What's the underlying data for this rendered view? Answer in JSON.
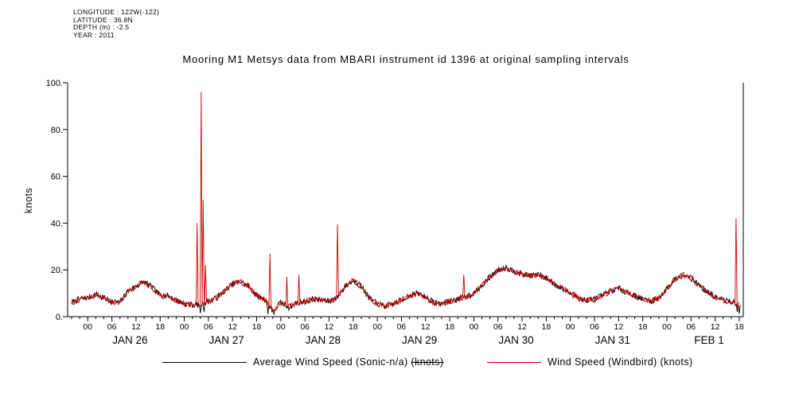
{
  "header_block": {
    "lines": [
      "LONGITUDE : 122W(-122)",
      "LATITUDE : 36.8N",
      "DEPTH (m) : -2.5",
      "YEAR : 2011"
    ]
  },
  "chart_data": {
    "type": "line",
    "title": "Mooring M1 Metsys data from MBARI instrument id 1396 at original sampling intervals",
    "ylabel": "knots",
    "ylim": [
      0,
      100
    ],
    "y_ticks": {
      "values": [
        0,
        20,
        40,
        60,
        80,
        100
      ],
      "labels": [
        "0.",
        "20.",
        "40.",
        "60.",
        "80.",
        "100."
      ]
    },
    "x_range_hours": [
      -5,
      163
    ],
    "hour_tick_interval": 6,
    "minor_tick_interval": 2,
    "hour_tick_labels": [
      "00",
      "06",
      "12",
      "18"
    ],
    "days": [
      "JAN 26",
      "JAN 27",
      "JAN 28",
      "JAN 29",
      "JAN 30",
      "JAN 31",
      "FEB 1"
    ],
    "grid": false,
    "legend_position": "bottom",
    "legend": {
      "sonic_label": "Average Wind Speed (Sonic-n/a) ",
      "sonic_label_struck": "(knots)",
      "windbird_label": "Wind Speed (Windbird) (knots)"
    },
    "baseline_hours_values": [
      [
        -4,
        6
      ],
      [
        -2,
        7.5
      ],
      [
        0,
        8
      ],
      [
        2,
        9.5
      ],
      [
        4,
        8
      ],
      [
        6,
        6.5
      ],
      [
        8,
        6
      ],
      [
        10,
        11
      ],
      [
        12,
        13
      ],
      [
        14,
        15
      ],
      [
        16,
        12.5
      ],
      [
        18,
        9
      ],
      [
        20,
        9
      ],
      [
        22,
        7
      ],
      [
        24,
        5.5
      ],
      [
        26,
        5
      ],
      [
        28,
        5
      ],
      [
        30,
        6.5
      ],
      [
        32,
        8
      ],
      [
        34,
        11
      ],
      [
        36,
        14
      ],
      [
        38,
        15
      ],
      [
        40,
        13
      ],
      [
        42,
        9
      ],
      [
        44,
        7.5
      ],
      [
        46,
        2.5
      ],
      [
        48,
        6
      ],
      [
        50,
        4
      ],
      [
        52,
        6
      ],
      [
        54,
        6.5
      ],
      [
        56,
        7.5
      ],
      [
        58,
        7
      ],
      [
        60,
        6.5
      ],
      [
        62,
        8
      ],
      [
        64,
        13
      ],
      [
        66,
        15.5
      ],
      [
        68,
        13
      ],
      [
        70,
        8
      ],
      [
        72,
        5.5
      ],
      [
        74,
        4.5
      ],
      [
        76,
        5.5
      ],
      [
        78,
        7
      ],
      [
        80,
        9
      ],
      [
        82,
        10
      ],
      [
        84,
        8.5
      ],
      [
        86,
        6
      ],
      [
        88,
        5.5
      ],
      [
        90,
        6.5
      ],
      [
        92,
        7.5
      ],
      [
        94,
        8.5
      ],
      [
        96,
        10
      ],
      [
        98,
        13
      ],
      [
        100,
        17
      ],
      [
        102,
        20
      ],
      [
        104,
        21
      ],
      [
        106,
        19.5
      ],
      [
        108,
        18
      ],
      [
        110,
        17.5
      ],
      [
        112,
        18
      ],
      [
        114,
        16.5
      ],
      [
        116,
        14
      ],
      [
        118,
        12
      ],
      [
        120,
        10
      ],
      [
        122,
        8
      ],
      [
        124,
        7
      ],
      [
        126,
        7.5
      ],
      [
        128,
        9
      ],
      [
        130,
        11
      ],
      [
        132,
        12
      ],
      [
        134,
        10.5
      ],
      [
        136,
        9
      ],
      [
        138,
        7.5
      ],
      [
        140,
        6.5
      ],
      [
        142,
        8
      ],
      [
        144,
        12
      ],
      [
        146,
        16
      ],
      [
        148,
        18
      ],
      [
        150,
        16.5
      ],
      [
        152,
        13.5
      ],
      [
        154,
        10.5
      ],
      [
        156,
        8.5
      ],
      [
        158,
        7
      ],
      [
        160,
        6.5
      ],
      [
        162,
        5
      ]
    ],
    "series": [
      {
        "name": "Average Wind Speed (Sonic-n/a) (knots)",
        "color": "#000000",
        "spikes": [
          [
            28,
            1.5
          ],
          [
            28.9,
            2
          ],
          [
            44.8,
            1
          ],
          [
            46.3,
            0.8
          ],
          [
            161.5,
            2
          ],
          [
            162,
            1.2
          ]
        ]
      },
      {
        "name": "Wind Speed (Windbird) (knots)",
        "color": "#cc0000",
        "spikes": [
          [
            27.2,
            40
          ],
          [
            28.2,
            96
          ],
          [
            28.7,
            50
          ],
          [
            29.3,
            22
          ],
          [
            45.3,
            27
          ],
          [
            49.5,
            17
          ],
          [
            52.5,
            18
          ],
          [
            62.1,
            39.5
          ],
          [
            93.5,
            18
          ],
          [
            161.2,
            42
          ]
        ]
      }
    ]
  }
}
